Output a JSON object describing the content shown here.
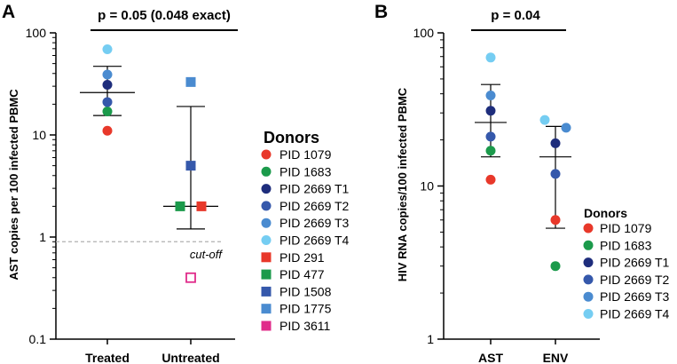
{
  "chart_data": [
    {
      "type": "scatter",
      "panel": "A",
      "ylabel": "AST copies per 100 infected PBMC",
      "yscale": "log",
      "ylim": [
        0.1,
        100
      ],
      "yticks": [
        "0.1",
        "1",
        "10",
        "100"
      ],
      "categories": [
        "Treated",
        "Untreated"
      ],
      "significance": "p = 0.05 (0.048 exact)",
      "cutoff": {
        "value": 0.9,
        "label": "cut-off"
      },
      "summary": [
        {
          "category": "Treated",
          "mean": 26,
          "upper": 47,
          "lower": 15.5
        },
        {
          "category": "Untreated",
          "mean": 2.0,
          "upper": 19,
          "lower": 1.2
        }
      ],
      "points": [
        {
          "category": "Treated",
          "donor": "PID 1079",
          "value": 11,
          "shape": "circle",
          "color": "#e8382a"
        },
        {
          "category": "Treated",
          "donor": "PID 1683",
          "value": 17,
          "shape": "circle",
          "color": "#1b9a4b"
        },
        {
          "category": "Treated",
          "donor": "PID 2669 T1",
          "value": 31,
          "shape": "circle",
          "color": "#1e2d7c"
        },
        {
          "category": "Treated",
          "donor": "PID 2669 T2",
          "value": 21,
          "shape": "circle",
          "color": "#3558ab"
        },
        {
          "category": "Treated",
          "donor": "PID 2669 T3",
          "value": 39,
          "shape": "circle",
          "color": "#4a8bd0"
        },
        {
          "category": "Treated",
          "donor": "PID 2669 T4",
          "value": 69,
          "shape": "circle",
          "color": "#75cdf2"
        },
        {
          "category": "Untreated",
          "donor": "PID 291",
          "value": 2.0,
          "shape": "square",
          "color": "#e8382a",
          "offset": 1
        },
        {
          "category": "Untreated",
          "donor": "PID 477",
          "value": 2.0,
          "shape": "square",
          "color": "#1b9a4b",
          "offset": -1
        },
        {
          "category": "Untreated",
          "donor": "PID 1508",
          "value": 5,
          "shape": "square",
          "color": "#3558ab",
          "offset": 0
        },
        {
          "category": "Untreated",
          "donor": "PID 1775",
          "value": 33,
          "shape": "square",
          "color": "#4a8bd0",
          "offset": 0
        },
        {
          "category": "Untreated",
          "donor": "PID 3611",
          "value": 0.4,
          "shape": "square-open",
          "color": "#e02b8a",
          "offset": 0
        }
      ],
      "legend": {
        "title": "Donors",
        "entries": [
          {
            "label": "PID 1079",
            "shape": "circle",
            "color": "#e8382a"
          },
          {
            "label": "PID 1683",
            "shape": "circle",
            "color": "#1b9a4b"
          },
          {
            "label": "PID 2669 T1",
            "shape": "circle",
            "color": "#1e2d7c"
          },
          {
            "label": "PID 2669 T2",
            "shape": "circle",
            "color": "#3558ab"
          },
          {
            "label": "PID 2669 T3",
            "shape": "circle",
            "color": "#4a8bd0"
          },
          {
            "label": "PID 2669 T4",
            "shape": "circle",
            "color": "#75cdf2"
          },
          {
            "label": "PID 291",
            "shape": "square",
            "color": "#e8382a"
          },
          {
            "label": "PID 477",
            "shape": "square",
            "color": "#1b9a4b"
          },
          {
            "label": "PID 1508",
            "shape": "square",
            "color": "#3558ab"
          },
          {
            "label": "PID 1775",
            "shape": "square",
            "color": "#4a8bd0"
          },
          {
            "label": "PID 3611",
            "shape": "square",
            "color": "#e02b8a"
          }
        ]
      }
    },
    {
      "type": "scatter",
      "panel": "B",
      "ylabel": "HIV RNA copies/100 infected PBMC",
      "yscale": "log",
      "ylim": [
        1,
        100
      ],
      "yticks": [
        "1",
        "10",
        "100"
      ],
      "categories": [
        "AST",
        "ENV"
      ],
      "significance": "p = 0.04",
      "summary": [
        {
          "category": "AST",
          "mean": 26,
          "upper": 46,
          "lower": 15.5
        },
        {
          "category": "ENV",
          "mean": 15.5,
          "upper": 24.5,
          "lower": 5.3
        }
      ],
      "points": [
        {
          "category": "AST",
          "donor": "PID 1079",
          "value": 11,
          "color": "#e8382a",
          "offset": 0
        },
        {
          "category": "AST",
          "donor": "PID 1683",
          "value": 17,
          "color": "#1b9a4b",
          "offset": 0
        },
        {
          "category": "AST",
          "donor": "PID 2669 T1",
          "value": 31,
          "color": "#1e2d7c",
          "offset": 0
        },
        {
          "category": "AST",
          "donor": "PID 2669 T2",
          "value": 21,
          "color": "#3558ab",
          "offset": 0
        },
        {
          "category": "AST",
          "donor": "PID 2669 T3",
          "value": 39,
          "color": "#4a8bd0",
          "offset": 0
        },
        {
          "category": "AST",
          "donor": "PID 2669 T4",
          "value": 69,
          "color": "#75cdf2",
          "offset": 0
        },
        {
          "category": "ENV",
          "donor": "PID 1079",
          "value": 6,
          "color": "#e8382a",
          "offset": 0
        },
        {
          "category": "ENV",
          "donor": "PID 1683",
          "value": 3,
          "color": "#1b9a4b",
          "offset": 0
        },
        {
          "category": "ENV",
          "donor": "PID 2669 T1",
          "value": 19,
          "color": "#1e2d7c",
          "offset": 0
        },
        {
          "category": "ENV",
          "donor": "PID 2669 T2",
          "value": 12,
          "color": "#3558ab",
          "offset": 0
        },
        {
          "category": "ENV",
          "donor": "PID 2669 T3",
          "value": 24,
          "color": "#4a8bd0",
          "offset": 1
        },
        {
          "category": "ENV",
          "donor": "PID 2669 T4",
          "value": 27,
          "color": "#75cdf2",
          "offset": -1
        }
      ],
      "legend": {
        "title": "Donors",
        "entries": [
          {
            "label": "PID 1079",
            "shape": "circle",
            "color": "#e8382a"
          },
          {
            "label": "PID 1683",
            "shape": "circle",
            "color": "#1b9a4b"
          },
          {
            "label": "PID 2669 T1",
            "shape": "circle",
            "color": "#1e2d7c"
          },
          {
            "label": "PID 2669 T2",
            "shape": "circle",
            "color": "#3558ab"
          },
          {
            "label": "PID 2669 T3",
            "shape": "circle",
            "color": "#4a8bd0"
          },
          {
            "label": "PID 2669 T4",
            "shape": "circle",
            "color": "#75cdf2"
          }
        ]
      }
    }
  ]
}
